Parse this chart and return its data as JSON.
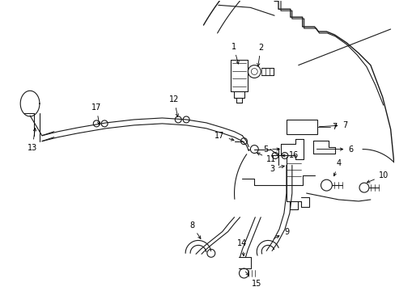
{
  "bg_color": "#ffffff",
  "line_color": "#1a1a1a",
  "fig_width": 4.89,
  "fig_height": 3.6,
  "dpi": 100,
  "fs": 7.0
}
